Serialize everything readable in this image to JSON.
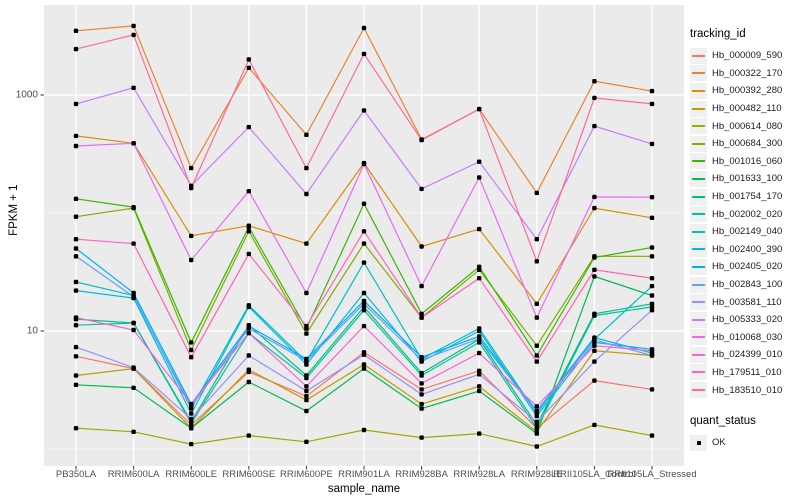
{
  "figure": {
    "y_axis_title": "FPKM + 1",
    "x_axis_title": "sample_name",
    "legend_series_title": "tracking_id",
    "legend_shape_title": "quant_status",
    "quant_ok_label": "OK"
  },
  "chart_data": {
    "type": "line",
    "title": "",
    "xlabel": "sample_name",
    "ylabel": "FPKM + 1",
    "y_scale": "log10",
    "ylim": [
      0.72,
      5750
    ],
    "grid": "on",
    "legend_position": "right",
    "panel_bg": "#EBEBEB",
    "grid_color": "#FFFFFF",
    "point_color": "#000000",
    "y_ticks": [
      {
        "label": "1000",
        "value": 1000
      },
      {
        "label": "10",
        "value": 10
      }
    ],
    "y_minor_ticks": [
      100,
      1
    ],
    "categories": [
      "PB350LA",
      "RRIM600LA",
      "RRIM600LE",
      "RRIM600SE",
      "RRIM600PE",
      "RRIM901LA",
      "RRIM928BA",
      "RRIM928LA",
      "RRIM928LE",
      "RRII105LA_Control",
      "RRII105LA_Stressed"
    ],
    "series": [
      {
        "name": "Hb_000009_590",
        "color": "#F8766D",
        "values": [
          6.1,
          4.8,
          1.6,
          4.5,
          2.8,
          6.6,
          3.2,
          4.6,
          1.5,
          3.8,
          3.2
        ]
      },
      {
        "name": "Hb_000322_170",
        "color": "#EA8331",
        "values": [
          3500,
          3850,
          240,
          1700,
          460,
          3700,
          420,
          760,
          148,
          1310,
          1080
        ]
      },
      {
        "name": "Hb_000392_280",
        "color": "#D89000",
        "values": [
          450,
          390,
          64,
          78,
          55,
          265,
          52,
          73,
          17,
          110,
          91
        ]
      },
      {
        "name": "Hb_000482_110",
        "color": "#C09B00",
        "values": [
          4.2,
          4.8,
          1.5,
          4.7,
          2.6,
          5.2,
          2.4,
          3.4,
          1.4,
          6.8,
          6.2
        ]
      },
      {
        "name": "Hb_000614_080",
        "color": "#A3A500",
        "values": [
          1.5,
          1.4,
          1.1,
          1.3,
          1.15,
          1.45,
          1.25,
          1.35,
          1.05,
          1.6,
          1.3
        ]
      },
      {
        "name": "Hb_000684_300",
        "color": "#7CAE00",
        "values": [
          93,
          110,
          6.9,
          70,
          9.5,
          55,
          13,
          33,
          7.5,
          43,
          43
        ]
      },
      {
        "name": "Hb_001016_060",
        "color": "#39B600",
        "values": [
          132,
          112,
          8,
          76,
          10.5,
          120,
          14,
          35,
          6.2,
          42,
          51
        ]
      },
      {
        "name": "Hb_001633_100",
        "color": "#00BB4E",
        "values": [
          3.5,
          3.3,
          1.5,
          3.7,
          2.1,
          4.8,
          2.2,
          3.1,
          1.35,
          29,
          20
        ]
      },
      {
        "name": "Hb_001754_170",
        "color": "#00BF7D",
        "values": [
          12.6,
          11.7,
          1.7,
          11.2,
          4.2,
          16,
          4.4,
          8.5,
          1.6,
          14,
          17
        ]
      },
      {
        "name": "Hb_002002_020",
        "color": "#00C1A7",
        "values": [
          11.2,
          11.7,
          1.65,
          9.6,
          4.0,
          15,
          4.2,
          8.0,
          1.5,
          13.5,
          16
        ]
      },
      {
        "name": "Hb_002149_040",
        "color": "#00BFC4",
        "values": [
          26,
          20,
          2.2,
          16.5,
          5.5,
          38,
          5.8,
          10.5,
          2.0,
          8.5,
          24
        ]
      },
      {
        "name": "Hb_002400_390",
        "color": "#00BADE",
        "values": [
          22,
          19,
          2.0,
          16,
          5.2,
          21,
          5.5,
          10,
          1.9,
          8.0,
          7.0
        ]
      },
      {
        "name": "Hb_002405_020",
        "color": "#00B0F6",
        "values": [
          50,
          21,
          2.4,
          11,
          5.8,
          18,
          6.0,
          9.0,
          2.1,
          8.8,
          6.5
        ]
      },
      {
        "name": "Hb_002843_100",
        "color": "#61A2FF",
        "values": [
          43,
          19.5,
          2.3,
          10.5,
          5.6,
          17,
          5.7,
          8.6,
          2.05,
          8.4,
          6.2
        ]
      },
      {
        "name": "Hb_003581_110",
        "color": "#9590FF",
        "values": [
          7.3,
          4.9,
          1.8,
          6.2,
          3.1,
          6.3,
          2.9,
          4.3,
          1.7,
          5.5,
          15
        ]
      },
      {
        "name": "Hb_005333_020",
        "color": "#C77CFF",
        "values": [
          840,
          1150,
          170,
          535,
          145,
          740,
          160,
          272,
          60,
          545,
          385
        ]
      },
      {
        "name": "Hb_010068_030",
        "color": "#E76BF3",
        "values": [
          370,
          390,
          40,
          153,
          21,
          260,
          24,
          200,
          13,
          137,
          136
        ]
      },
      {
        "name": "Hb_024399_010",
        "color": "#FA62DB",
        "values": [
          13,
          10.2,
          2.4,
          9.6,
          3.4,
          11,
          3.6,
          6.5,
          2.3,
          7.5,
          6.8
        ]
      },
      {
        "name": "Hb_179511_010",
        "color": "#FF62BC",
        "values": [
          60,
          55,
          6.0,
          45,
          11,
          70,
          13,
          28,
          5.5,
          33,
          28
        ]
      },
      {
        "name": "Hb_183510_010",
        "color": "#FF6A98",
        "values": [
          2450,
          3230,
          163,
          2000,
          240,
          2230,
          415,
          760,
          39,
          945,
          840
        ]
      }
    ],
    "quant_status": {
      "title": "quant_status",
      "entries": [
        {
          "label": "OK",
          "marker": "filled-square"
        }
      ]
    }
  }
}
